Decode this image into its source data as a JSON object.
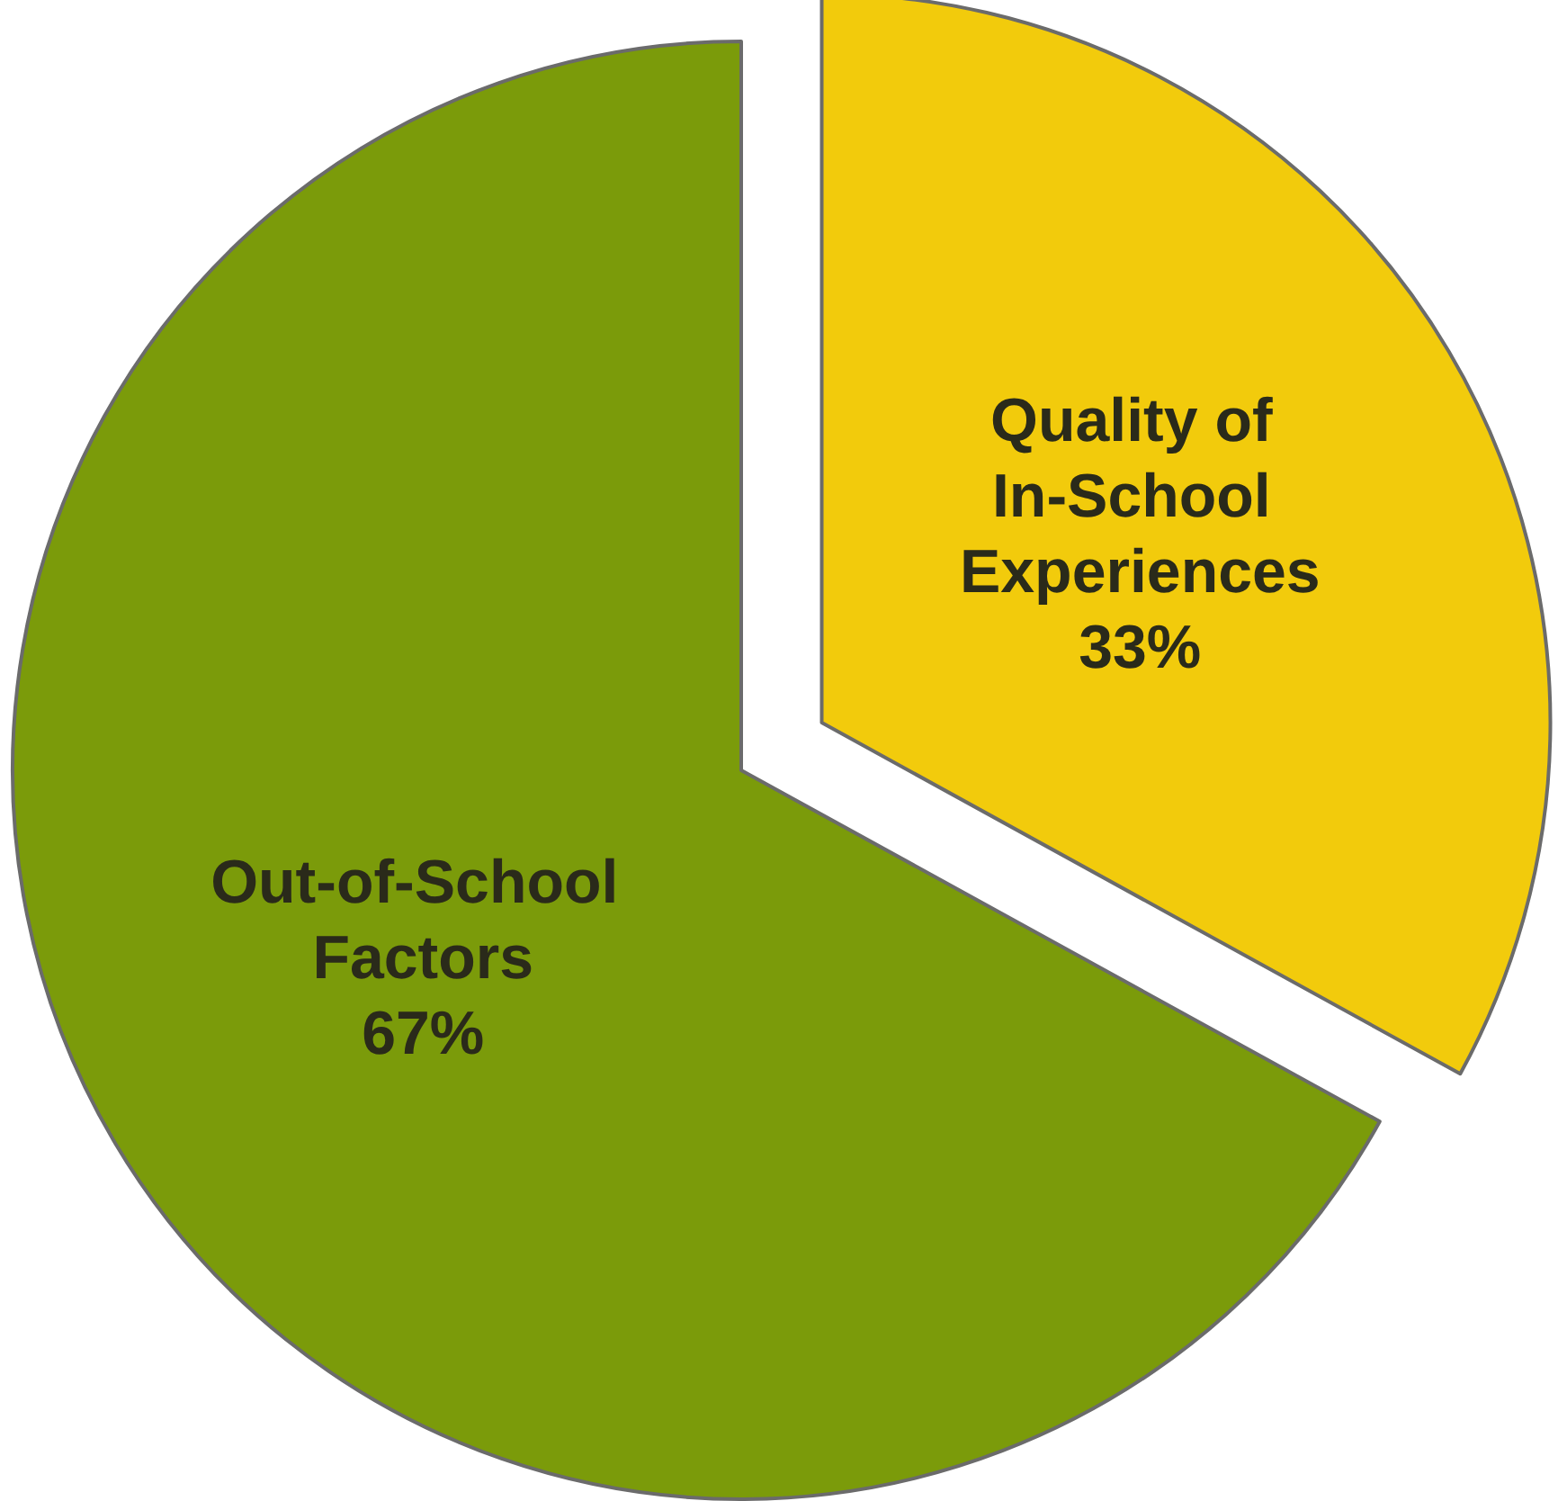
{
  "chart_data": {
    "type": "pie",
    "categories": [
      "Quality of In-School Experiences",
      "Out-of-School Factors"
    ],
    "values": [
      33,
      67
    ],
    "colors": [
      "#f2cb0c",
      "#7b9b0a"
    ],
    "value_labels": [
      "33%",
      "67%"
    ]
  }
}
